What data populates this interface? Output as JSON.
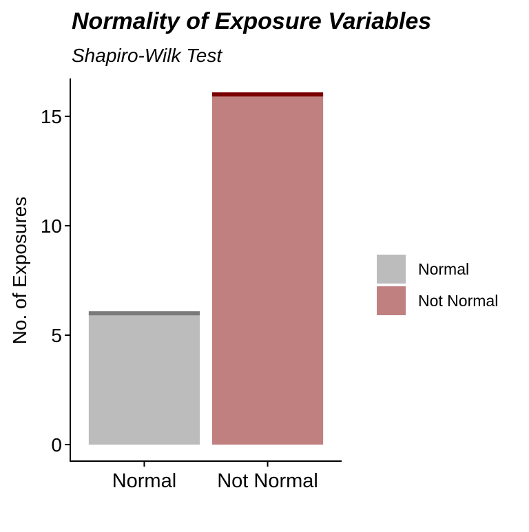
{
  "chart_data": {
    "type": "bar",
    "title": "Normality of Exposure Variables",
    "subtitle": "Shapiro-Wilk Test",
    "xlabel": "",
    "ylabel": "No. of Exposures",
    "categories": [
      "Normal",
      "Not Normal"
    ],
    "values": [
      6,
      16
    ],
    "ylim": [
      0,
      16.8
    ],
    "yticks": [
      0,
      5,
      10,
      15
    ],
    "grid": false,
    "legend": {
      "position": "right",
      "entries": [
        "Normal",
        "Not Normal"
      ]
    },
    "colors": {
      "fills": [
        "#bcbcbc",
        "#c08080"
      ],
      "caps": [
        "#7a7a7a",
        "#7a0000"
      ]
    }
  }
}
